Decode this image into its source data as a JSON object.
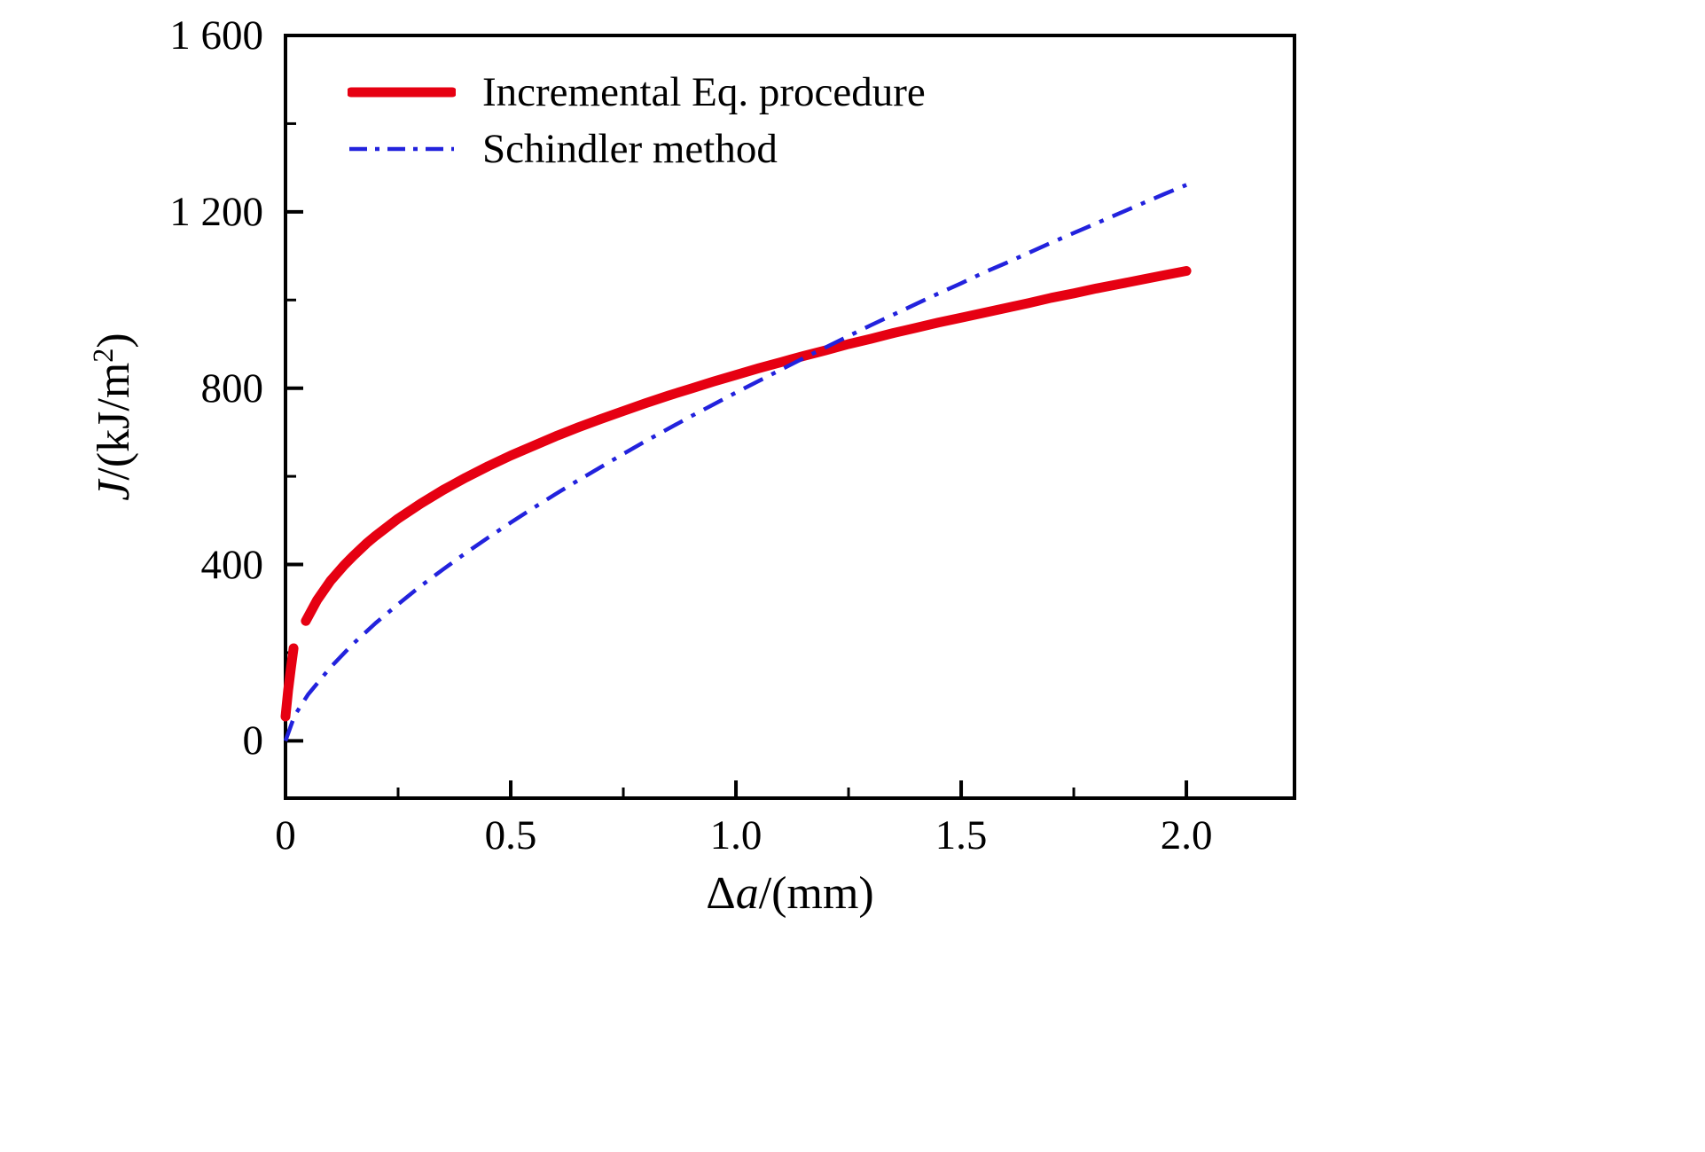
{
  "chart_data": {
    "type": "line",
    "title": "",
    "xlabel": "Δa/(mm)",
    "ylabel": "J/(kJ/m²)",
    "xlabel_parts": {
      "prefix": "Δ",
      "var": "a",
      "rest": "/(mm)"
    },
    "ylabel_parts": {
      "var": "J",
      "pre": "/(kJ/m",
      "sup": "2",
      "post": ")"
    },
    "xlim": [
      0,
      2.24
    ],
    "ylim": [
      -130,
      1600
    ],
    "xticks": [
      0,
      0.5,
      1.0,
      1.5,
      2.0
    ],
    "xtick_labels": [
      "0",
      "0.5",
      "1.0",
      "1.5",
      "2.0"
    ],
    "x_minor_ticks": [
      0.25,
      0.75,
      1.25,
      1.75
    ],
    "yticks": [
      0,
      400,
      800,
      1200,
      1600
    ],
    "ytick_labels": [
      "0",
      "400",
      "800",
      "1 200",
      "1 600"
    ],
    "y_minor_ticks": [
      200,
      600,
      1000,
      1400
    ],
    "grid": false,
    "legend_position": "top-left",
    "frame_color": "#000000",
    "series": [
      {
        "name": "Incremental Eq. procedure",
        "color": "#e60012",
        "style": "solid",
        "line_width": 11,
        "segments": [
          [
            [
              0.0,
              55
            ],
            [
              0.006,
              115
            ],
            [
              0.012,
              165
            ],
            [
              0.018,
              210
            ]
          ],
          [
            [
              0.045,
              272
            ],
            [
              0.07,
              319
            ],
            [
              0.1,
              363
            ],
            [
              0.13,
              398
            ],
            [
              0.15,
              419
            ],
            [
              0.18,
              448
            ],
            [
              0.2,
              465
            ],
            [
              0.25,
              504
            ],
            [
              0.3,
              538
            ],
            [
              0.35,
              569
            ],
            [
              0.4,
              597
            ],
            [
              0.45,
              623
            ],
            [
              0.5,
              647
            ],
            [
              0.55,
              669
            ],
            [
              0.6,
              691
            ],
            [
              0.65,
              711
            ],
            [
              0.7,
              730
            ],
            [
              0.75,
              748
            ],
            [
              0.8,
              766
            ],
            [
              0.85,
              783
            ],
            [
              0.9,
              799
            ],
            [
              0.95,
              815
            ],
            [
              1.0,
              830
            ],
            [
              1.05,
              845
            ],
            [
              1.1,
              859
            ],
            [
              1.15,
              873
            ],
            [
              1.2,
              886
            ],
            [
              1.25,
              900
            ],
            [
              1.3,
              912
            ],
            [
              1.35,
              925
            ],
            [
              1.4,
              937
            ],
            [
              1.45,
              949
            ],
            [
              1.5,
              960
            ],
            [
              1.55,
              971
            ],
            [
              1.6,
              982
            ],
            [
              1.65,
              993
            ],
            [
              1.7,
              1005
            ],
            [
              1.75,
              1015
            ],
            [
              1.8,
              1026
            ],
            [
              1.85,
              1036
            ],
            [
              1.9,
              1046
            ],
            [
              1.95,
              1056
            ],
            [
              2.0,
              1066
            ]
          ]
        ]
      },
      {
        "name": "Schindler method",
        "color": "#2222dd",
        "style": "dash-dot",
        "line_width": 4.5,
        "segments": [
          [
            [
              0.0,
              0
            ],
            [
              0.02,
              57
            ],
            [
              0.05,
              105
            ],
            [
              0.1,
              167
            ],
            [
              0.15,
              220
            ],
            [
              0.2,
              267
            ],
            [
              0.25,
              310
            ],
            [
              0.3,
              351
            ],
            [
              0.35,
              389
            ],
            [
              0.4,
              426
            ],
            [
              0.45,
              461
            ],
            [
              0.5,
              495
            ],
            [
              0.55,
              528
            ],
            [
              0.6,
              560
            ],
            [
              0.65,
              591
            ],
            [
              0.7,
              621
            ],
            [
              0.75,
              651
            ],
            [
              0.8,
              680
            ],
            [
              0.85,
              708
            ],
            [
              0.9,
              736
            ],
            [
              0.95,
              763
            ],
            [
              1.0,
              790
            ],
            [
              1.05,
              816
            ],
            [
              1.1,
              842
            ],
            [
              1.15,
              868
            ],
            [
              1.2,
              893
            ],
            [
              1.25,
              918
            ],
            [
              1.3,
              943
            ],
            [
              1.35,
              967
            ],
            [
              1.4,
              991
            ],
            [
              1.45,
              1015
            ],
            [
              1.5,
              1038
            ],
            [
              1.55,
              1062
            ],
            [
              1.6,
              1084
            ],
            [
              1.65,
              1107
            ],
            [
              1.7,
              1130
            ],
            [
              1.75,
              1152
            ],
            [
              1.8,
              1174
            ],
            [
              1.85,
              1196
            ],
            [
              1.9,
              1218
            ],
            [
              1.95,
              1240
            ],
            [
              2.0,
              1261
            ]
          ]
        ]
      }
    ]
  }
}
